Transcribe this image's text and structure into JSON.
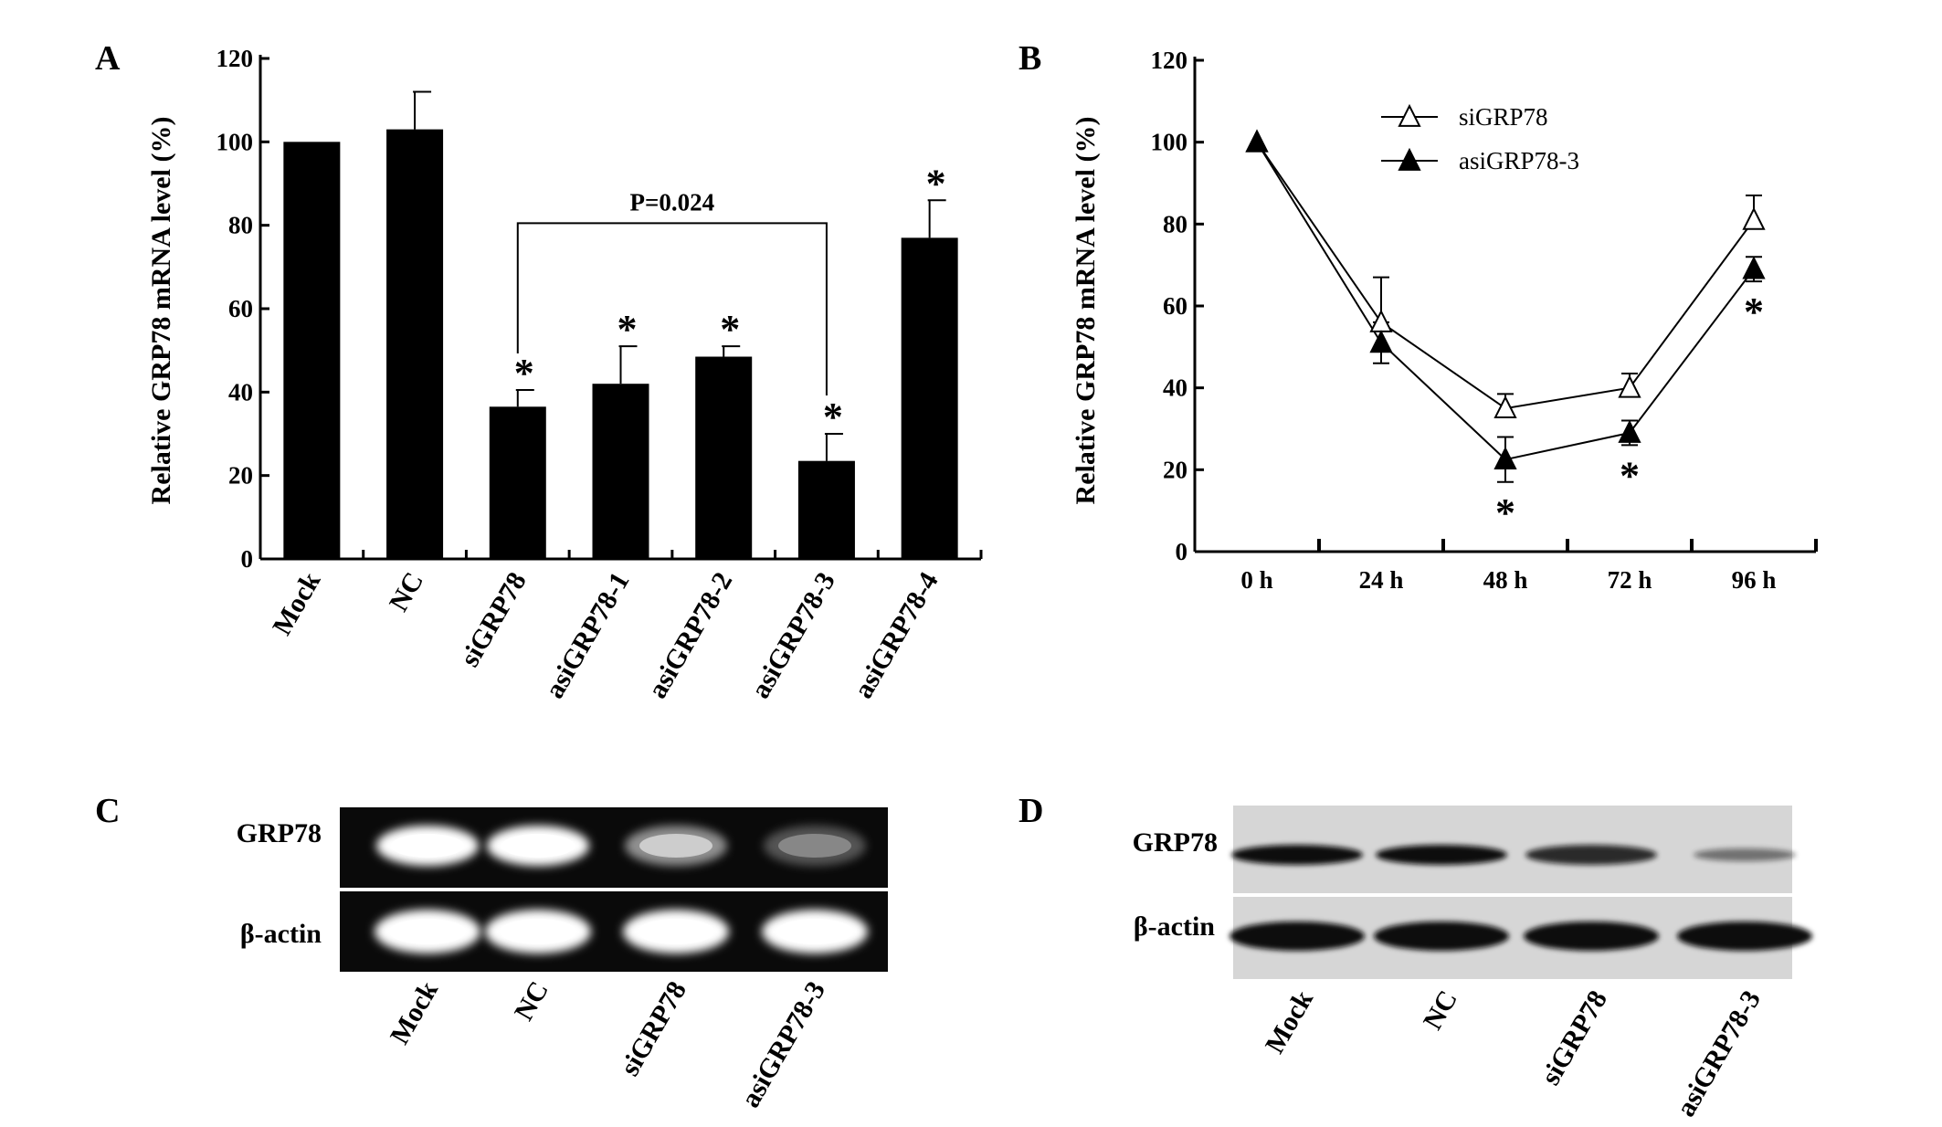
{
  "panels": {
    "A": {
      "letter": "A",
      "chart_data": {
        "type": "bar",
        "categories": [
          "Mock",
          "NC",
          "siGRP78",
          "asiGRP78-1",
          "asiGRP78-2",
          "asiGRP78-3",
          "asiGRP78-4"
        ],
        "values": [
          100,
          103,
          36.5,
          42,
          48.5,
          23.5,
          77
        ],
        "errors": [
          0,
          9,
          4,
          9,
          2.5,
          6.5,
          9
        ],
        "significant": [
          false,
          false,
          true,
          true,
          true,
          true,
          true
        ],
        "ylabel": "Relative GRP78 mRNA level (%)",
        "ylim": [
          0,
          120
        ],
        "yticks": [
          0,
          20,
          40,
          60,
          80,
          100,
          120
        ],
        "bar_color": "#000000",
        "comparison": {
          "from": "siGRP78",
          "to": "asiGRP78-3",
          "label": "P=0.024"
        },
        "star": "*"
      }
    },
    "B": {
      "letter": "B",
      "chart_data": {
        "type": "line",
        "x": [
          "0 h",
          "24 h",
          "48 h",
          "72 h",
          "96 h"
        ],
        "series": [
          {
            "name": "siGRP78",
            "values": [
              100,
              56,
              35,
              40,
              81
            ],
            "errors": [
              0,
              11,
              3.5,
              3.5,
              6
            ],
            "marker": "open-triangle",
            "significant": [
              false,
              false,
              false,
              false,
              false
            ]
          },
          {
            "name": "asiGRP78-3",
            "values": [
              100,
              51,
              22.5,
              29,
              69
            ],
            "errors": [
              0,
              5,
              5.5,
              3,
              3
            ],
            "marker": "filled-triangle",
            "significant": [
              false,
              false,
              true,
              true,
              true
            ]
          }
        ],
        "ylabel": "Relative GRP78 mRNA level (%)",
        "ylim": [
          0,
          120
        ],
        "yticks": [
          0,
          20,
          40,
          60,
          80,
          100,
          120
        ],
        "legend_position": "top-center",
        "star": "*"
      }
    },
    "C": {
      "letter": "C",
      "rows": [
        "GRP78",
        "β-actin"
      ],
      "lanes": [
        "Mock",
        "NC",
        "siGRP78",
        "asiGRP78-3"
      ],
      "grp78_intensity": [
        1.0,
        1.0,
        0.55,
        0.3
      ],
      "actin_intensity": [
        1.0,
        1.0,
        1.0,
        1.0
      ]
    },
    "D": {
      "letter": "D",
      "rows": [
        "GRP78",
        "β-actin"
      ],
      "lanes": [
        "Mock",
        "NC",
        "siGRP78",
        "asiGRP78-3"
      ],
      "grp78_intensity": [
        1.0,
        1.0,
        0.85,
        0.35
      ],
      "actin_intensity": [
        1.0,
        1.0,
        1.0,
        1.0
      ]
    }
  }
}
